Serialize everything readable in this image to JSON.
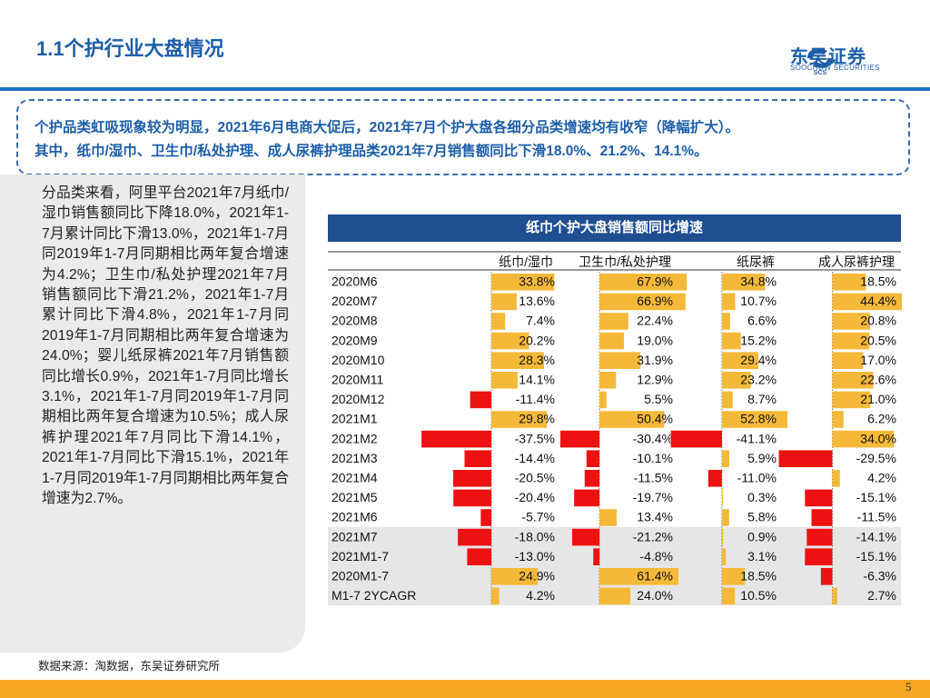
{
  "page": {
    "title": "1.1个护行业大盘情况",
    "logo": {
      "name": "东吴证券",
      "mark": "SCS",
      "sub": "SOOCHOW SECURITIES"
    },
    "summary": [
      "个护品类虹吸现象较为明显，2021年6月电商大促后，2021年7月个护大盘各细分品类增速均有收窄（降幅扩大）。",
      "其中，纸巾/湿巾、卫生巾/私处护理、成人尿裤护理品类2021年7月销售额同比下滑18.0%、21.2%、14.1%。"
    ],
    "sidebar_text": "分品类来看，阿里平台2021年7月纸巾/湿巾销售额同比下降18.0%，2021年1-7月累计同比下滑13.0%，2021年1-7月同2019年1-7月同期相比两年复合增速为4.2%；卫生巾/私处护理2021年7月销售额同比下滑21.2%，2021年1-7月累计同比下滑4.8%，2021年1-7月同2019年1-7月同期相比两年复合增速为24.0%；婴儿纸尿裤2021年7月销售额同比增长0.9%，2021年1-7月同比增长3.1%，2021年1-7月同2019年1-7月同期相比两年复合增速为10.5%；成人尿裤护理2021年7月同比下滑14.1%，2021年1-7月同比下滑15.1%，2021年1-7月同2019年1-7月同期相比两年复合增速为2.7%。",
    "source": "数据来源：淘数据，东吴证券研究所",
    "page_number": "5"
  },
  "chart_data": {
    "type": "table",
    "title": "纸巾个护大盘销售额同比增速",
    "columns": [
      "纸巾/湿巾",
      "卫生巾/私处护理",
      "纸尿裤",
      "成人尿裤护理"
    ],
    "rows": [
      "2020M6",
      "2020M7",
      "2020M8",
      "2020M9",
      "2020M10",
      "2020M11",
      "2020M12",
      "2021M1",
      "2021M2",
      "2021M3",
      "2021M4",
      "2021M5",
      "2021M6",
      "2021M7",
      "2021M1-7",
      "2020M1-7",
      "M1-7 2YCAGR"
    ],
    "highlight_rows": [
      "2021M7",
      "2021M1-7",
      "2020M1-7",
      "M1-7 2YCAGR"
    ],
    "unit": "%",
    "series": [
      {
        "name": "纸巾/湿巾",
        "values": [
          33.8,
          13.6,
          7.4,
          20.2,
          28.3,
          14.1,
          -11.4,
          29.8,
          -37.5,
          -14.4,
          -20.5,
          -20.4,
          -5.7,
          -18.0,
          -13.0,
          24.9,
          4.2
        ]
      },
      {
        "name": "卫生巾/私处护理",
        "values": [
          67.9,
          66.9,
          22.4,
          19.0,
          31.9,
          12.9,
          5.5,
          50.4,
          -30.4,
          -10.1,
          -11.5,
          -19.7,
          13.4,
          -21.2,
          -4.8,
          61.4,
          24.0
        ]
      },
      {
        "name": "纸尿裤",
        "values": [
          34.8,
          10.7,
          6.6,
          15.2,
          29.4,
          23.2,
          8.7,
          52.8,
          -41.1,
          5.9,
          -11.0,
          0.3,
          5.8,
          0.9,
          3.1,
          18.5,
          10.5
        ]
      },
      {
        "name": "成人尿裤护理",
        "values": [
          18.5,
          44.4,
          20.8,
          20.5,
          17.0,
          22.6,
          21.0,
          6.2,
          34.0,
          -29.5,
          4.2,
          -15.1,
          -11.5,
          -14.1,
          -15.1,
          -6.3,
          2.7
        ]
      }
    ],
    "colors": {
      "positive": "#f5b93a",
      "negative": "#ee1111",
      "title_bar": "#1f4e91",
      "highlight_row": "#e6e6e6"
    }
  }
}
